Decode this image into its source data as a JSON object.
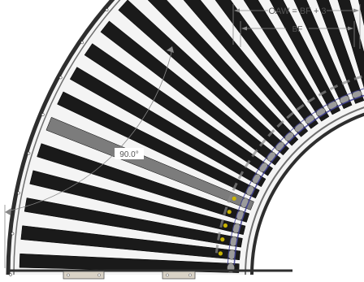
{
  "dimensions": {
    "oaw_label": "OAW = BF + 3",
    "bf_label": "BF",
    "angle_label": "90.0°"
  },
  "drawing": {
    "roller_count": 20,
    "colors": {
      "roller": "#1a1a1a",
      "frame": "#6f6f6f",
      "frame_dark": "#2e2e2e",
      "belt": "#3b3b8f",
      "hub": "#9b9b9b",
      "accent_yellow": "#c9b400",
      "bracket": "#d9d2c6",
      "dimension_line": "#777777"
    }
  }
}
